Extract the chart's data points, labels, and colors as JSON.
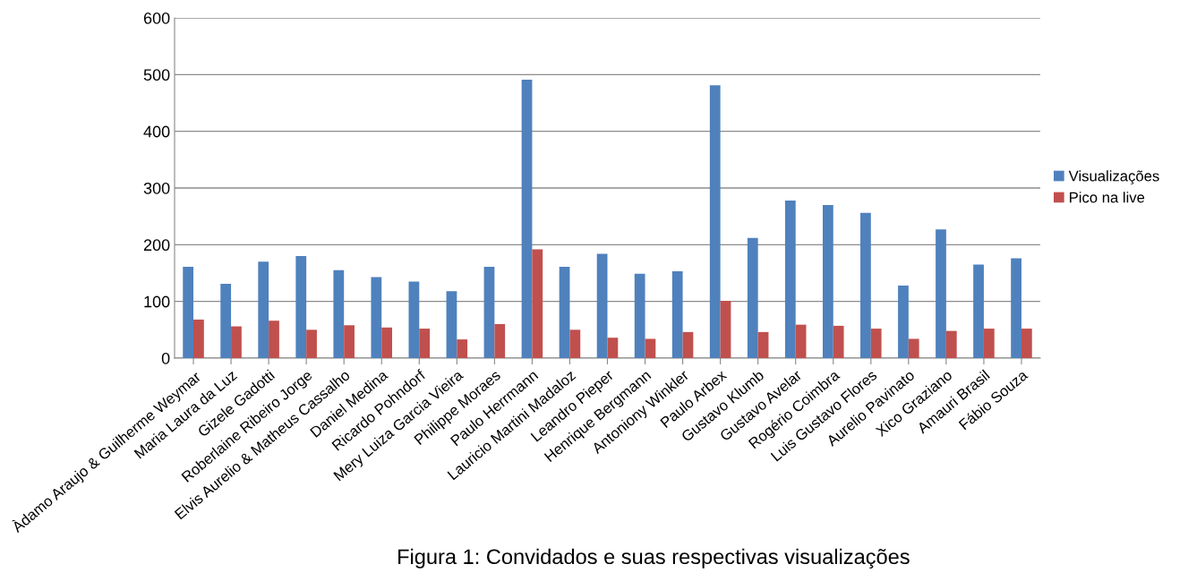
{
  "chart_data": {
    "type": "bar",
    "categories": [
      "Àdamo Araujo & Guilherme Weymar",
      "Maria Laura da Luz",
      "Gizele Gadotti",
      "Roberlaine Ribeiro Jorge",
      "Elvis Aurelio & Matheus Cassalho",
      "Daniel Medina",
      "Ricardo Pohndorf",
      "Mery Luiza Garcia Vieira",
      "Philippe Moraes",
      "Paulo Herrmann",
      "Lauricio Martini Madaloz",
      "Leandro Pieper",
      "Henrique Bergmann",
      "Antoniony Winkler",
      "Paulo Arbex",
      "Gustavo Klumb",
      "Gustavo Avelar",
      "Rogério Coimbra",
      "Luis Gustavo Flores",
      "Aurelio Pavinato",
      "Xico Graziano",
      "Amauri Brasil",
      "Fábio Souza"
    ],
    "series": [
      {
        "name": "Visualizações",
        "color": "#4f81bd",
        "values": [
          161,
          131,
          170,
          180,
          155,
          143,
          135,
          118,
          161,
          491,
          161,
          184,
          149,
          153,
          481,
          212,
          278,
          270,
          256,
          128,
          227,
          165,
          176
        ]
      },
      {
        "name": "Pico na live",
        "color": "#c0504d",
        "values": [
          68,
          56,
          66,
          50,
          58,
          54,
          52,
          33,
          60,
          192,
          50,
          36,
          34,
          46,
          101,
          46,
          59,
          57,
          52,
          34,
          48,
          52,
          52
        ]
      }
    ],
    "ylim": [
      0,
      600
    ],
    "yticks": [
      0,
      100,
      200,
      300,
      400,
      500,
      600
    ],
    "grid": "y",
    "legend": "right",
    "annotations": [
      "Figura 1: Convidados e suas respectivas visualizações"
    ]
  }
}
